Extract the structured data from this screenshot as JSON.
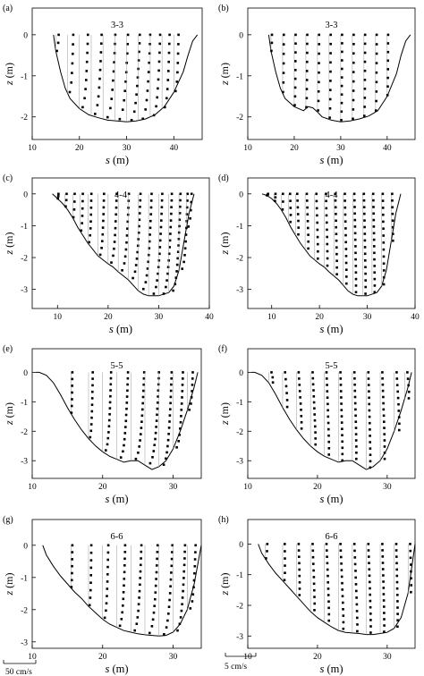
{
  "figure": {
    "panels": [
      {
        "letter": "(a)",
        "section": "3-3",
        "xticks": [
          "10",
          "20",
          "30",
          "40"
        ],
        "yticks": [
          "0",
          "-1",
          "-2"
        ],
        "xlabel_var": "s",
        "xlabel_unit": "(m)",
        "ylabel_var": "z",
        "ylabel_unit": "(m)",
        "xlim": [
          10,
          46
        ],
        "ylim": [
          -2.55,
          0.65
        ]
      },
      {
        "letter": "(b)",
        "section": "3-3",
        "xticks": [
          "10",
          "20",
          "30",
          "40"
        ],
        "yticks": [
          "0",
          "-1",
          "-2"
        ],
        "xlabel_var": "s",
        "xlabel_unit": "(m)",
        "ylabel_var": "z",
        "ylabel_unit": "(m)",
        "xlim": [
          10,
          46
        ],
        "ylim": [
          -2.55,
          0.65
        ]
      },
      {
        "letter": "(c)",
        "section": "4-4",
        "xticks": [
          "10",
          "20",
          "30",
          "40"
        ],
        "yticks": [
          "0",
          "-1",
          "-2",
          "-3"
        ],
        "xlabel_var": "s",
        "xlabel_unit": "(m)",
        "ylabel_var": "z",
        "ylabel_unit": "(m)",
        "xlim": [
          5,
          40
        ],
        "ylim": [
          -3.6,
          0.5
        ]
      },
      {
        "letter": "(d)",
        "section": "4-4",
        "xticks": [
          "10",
          "20",
          "30",
          "40"
        ],
        "yticks": [
          "0",
          "-1",
          "-2",
          "-3"
        ],
        "xlabel_var": "s",
        "xlabel_unit": "(m)",
        "ylabel_var": "z",
        "ylabel_unit": "(m)",
        "xlim": [
          5,
          40
        ],
        "ylim": [
          -3.6,
          0.5
        ]
      },
      {
        "letter": "(e)",
        "section": "5-5",
        "xticks": [
          "10",
          "20",
          "30"
        ],
        "yticks": [
          "0",
          "-1",
          "-2",
          "-3"
        ],
        "xlabel_var": "s",
        "xlabel_unit": "(m)",
        "ylabel_var": "z",
        "ylabel_unit": "(m)",
        "xlim": [
          10,
          34
        ],
        "ylim": [
          -3.6,
          0.8
        ]
      },
      {
        "letter": "(f)",
        "section": "5-5",
        "xticks": [
          "10",
          "20",
          "30"
        ],
        "yticks": [
          "0",
          "-1",
          "-2",
          "-3"
        ],
        "xlabel_var": "s",
        "xlabel_unit": "(m)",
        "ylabel_var": "z",
        "ylabel_unit": "(m)",
        "xlim": [
          10,
          34
        ],
        "ylim": [
          -3.6,
          0.8
        ]
      },
      {
        "letter": "(g)",
        "section": "6-6",
        "xticks": [
          "10",
          "20",
          "30"
        ],
        "yticks": [
          "0",
          "-1",
          "-2",
          "-3"
        ],
        "xlabel_var": "s",
        "xlabel_unit": "(m)",
        "ylabel_var": "z",
        "ylabel_unit": "(m)",
        "xlim": [
          10,
          34
        ],
        "ylim": [
          -3.2,
          0.8
        ]
      },
      {
        "letter": "(h)",
        "section": "6-6",
        "xticks": [
          "10",
          "20",
          "30"
        ],
        "yticks": [
          "0",
          "-1",
          "-2",
          "-3"
        ],
        "xlabel_var": "s",
        "xlabel_unit": "(m)",
        "ylabel_var": "z",
        "ylabel_unit": "(m)",
        "xlim": [
          10,
          34
        ],
        "ylim": [
          -3.4,
          0.8
        ]
      }
    ],
    "scales": [
      {
        "label": "50 cm/s",
        "length_cms": 50,
        "column": "left"
      },
      {
        "label": "5 cm/s",
        "length_cms": 5,
        "column": "right"
      }
    ]
  },
  "chart_data": [
    {
      "type": "scatter",
      "panel": "(a)",
      "title": "3-3",
      "xlabel": "s (m)",
      "ylabel": "z (m)",
      "xlim": [
        10,
        46
      ],
      "ylim": [
        -2.55,
        0.65
      ],
      "bed": {
        "x": [
          14.5,
          15,
          16,
          17,
          18,
          20,
          22,
          24,
          26,
          28,
          30,
          32,
          34,
          36,
          38,
          40,
          42,
          43,
          44,
          45
        ],
        "y": [
          0,
          -0.4,
          -0.9,
          -1.3,
          -1.55,
          -1.8,
          -1.95,
          -2.02,
          -2.08,
          -2.1,
          -2.12,
          -2.1,
          -2.05,
          -1.95,
          -1.75,
          -1.4,
          -0.9,
          -0.5,
          -0.15,
          0
        ]
      },
      "verticals": [
        15,
        17.5,
        20,
        22.5,
        25,
        27.5,
        30,
        32.5,
        35,
        37.5,
        40
      ],
      "velocity": [
        0.6,
        1.2,
        1.8,
        2.2,
        2.6,
        2.8,
        2.8,
        2.5,
        2.1,
        1.6,
        1.0
      ],
      "shear": [
        0,
        0,
        0,
        0,
        0,
        0,
        0,
        0,
        0,
        0,
        0
      ]
    },
    {
      "type": "scatter",
      "panel": "(b)",
      "title": "3-3",
      "xlabel": "s (m)",
      "ylabel": "z (m)",
      "xlim": [
        10,
        46
      ],
      "ylim": [
        -2.55,
        0.65
      ],
      "bed": {
        "x": [
          14.5,
          15,
          16,
          17,
          18,
          20,
          22,
          23,
          24,
          25,
          26,
          28,
          30,
          32,
          34,
          36,
          38,
          40,
          42,
          43,
          44,
          45
        ],
        "y": [
          0,
          -0.4,
          -0.9,
          -1.3,
          -1.55,
          -1.75,
          -1.85,
          -1.75,
          -1.78,
          -1.88,
          -2.0,
          -2.08,
          -2.12,
          -2.1,
          -2.05,
          -1.98,
          -1.85,
          -1.5,
          -0.95,
          -0.5,
          -0.15,
          0
        ]
      },
      "verticals": [
        15,
        17.5,
        20,
        22.5,
        25,
        27.5,
        30,
        32.5,
        35,
        37.5,
        40
      ],
      "velocity": [
        0.2,
        0.25,
        0.3,
        0.3,
        0.35,
        0.35,
        0.3,
        0.3,
        0.25,
        0.25,
        0.2
      ],
      "shear": [
        0,
        0,
        0,
        0,
        0,
        0,
        0,
        0,
        0,
        0,
        0
      ]
    },
    {
      "type": "scatter",
      "panel": "(c)",
      "title": "4-4",
      "xlabel": "s (m)",
      "ylabel": "z (m)",
      "xlim": [
        5,
        40
      ],
      "ylim": [
        -3.6,
        0.5
      ],
      "bed": {
        "x": [
          9,
          10,
          11,
          12,
          13,
          14,
          15,
          16,
          18,
          20,
          21,
          22,
          24,
          26,
          27,
          28,
          30,
          32,
          33,
          34,
          35,
          36,
          37
        ],
        "y": [
          0,
          -0.15,
          -0.3,
          -0.5,
          -0.75,
          -1.05,
          -1.3,
          -1.55,
          -1.95,
          -2.2,
          -2.3,
          -2.45,
          -2.7,
          -3.05,
          -3.15,
          -3.2,
          -3.2,
          -3.1,
          -2.9,
          -2.4,
          -1.5,
          -0.6,
          0
        ]
      },
      "verticals": [
        10,
        11.5,
        13,
        14.5,
        16,
        18,
        20,
        22,
        24,
        26,
        28,
        30,
        32,
        34,
        35.5
      ],
      "velocity": [
        0.2,
        0.3,
        0.4,
        0.5,
        0.7,
        1.2,
        1.7,
        2.1,
        2.4,
        2.6,
        2.7,
        2.6,
        2.3,
        1.7,
        1.0
      ],
      "shear": [
        0,
        0,
        0,
        0,
        0,
        0,
        0,
        0,
        0,
        0,
        0,
        0,
        0,
        0,
        0
      ]
    },
    {
      "type": "scatter",
      "panel": "(d)",
      "title": "4-4",
      "xlabel": "s (m)",
      "ylabel": "z (m)",
      "xlim": [
        5,
        40
      ],
      "ylim": [
        -3.6,
        0.5
      ],
      "bed": {
        "x": [
          8,
          9,
          10,
          11,
          12,
          13,
          14,
          15,
          16,
          18,
          20,
          21,
          22,
          24,
          26,
          27,
          28,
          30,
          32,
          33,
          34,
          35,
          36,
          37
        ],
        "y": [
          0,
          -0.05,
          -0.15,
          -0.3,
          -0.5,
          -0.75,
          -1.05,
          -1.3,
          -1.55,
          -1.95,
          -2.2,
          -2.3,
          -2.45,
          -2.7,
          -3.05,
          -3.15,
          -3.2,
          -3.2,
          -3.1,
          -2.9,
          -2.4,
          -1.5,
          -0.6,
          0
        ]
      },
      "verticals": [
        9,
        10.5,
        12,
        13.5,
        15,
        17,
        19,
        21,
        23,
        25,
        27,
        29,
        31,
        33,
        35
      ],
      "velocity": [
        0.25,
        0.3,
        0.35,
        0.35,
        0.35,
        0.35,
        0.35,
        0.35,
        0.3,
        0.3,
        0.3,
        0.3,
        0.25,
        0.25,
        0.2
      ],
      "shear": [
        -0.05,
        0.05,
        0.1,
        0.2,
        0.3,
        0.35,
        0.35,
        0.35,
        0.35,
        0.35,
        0.35,
        0.35,
        0.3,
        0.25,
        0.2
      ]
    },
    {
      "type": "scatter",
      "panel": "(e)",
      "title": "5-5",
      "xlabel": "s (m)",
      "ylabel": "z (m)",
      "xlim": [
        10,
        34
      ],
      "ylim": [
        -3.6,
        0.8
      ],
      "bed": {
        "x": [
          10.5,
          11,
          12,
          13,
          14,
          15,
          16,
          17,
          18,
          19,
          20,
          21,
          22,
          23,
          24,
          25,
          26,
          27,
          28,
          29,
          30,
          31,
          32,
          33,
          33.5
        ],
        "y": [
          0,
          0,
          -0.1,
          -0.35,
          -0.75,
          -1.2,
          -1.6,
          -1.95,
          -2.25,
          -2.5,
          -2.7,
          -2.85,
          -2.95,
          -3.05,
          -3.0,
          -3.0,
          -3.15,
          -3.3,
          -3.2,
          -3.0,
          -2.6,
          -2.0,
          -1.3,
          -0.5,
          0
        ]
      },
      "verticals": [
        15.5,
        18,
        20,
        22,
        24,
        26,
        28,
        30,
        32
      ],
      "velocity": [
        0.2,
        0.6,
        1.2,
        1.6,
        1.9,
        2.0,
        1.8,
        1.4,
        0.8
      ],
      "shear": [
        0,
        0,
        0,
        0,
        0,
        0,
        0,
        0,
        0
      ]
    },
    {
      "type": "scatter",
      "panel": "(f)",
      "title": "5-5",
      "xlabel": "s (m)",
      "ylabel": "z (m)",
      "xlim": [
        10,
        34
      ],
      "ylim": [
        -3.6,
        0.8
      ],
      "bed": {
        "x": [
          10.5,
          11,
          12,
          13,
          14,
          15,
          16,
          17,
          18,
          19,
          20,
          21,
          22,
          23,
          24,
          25,
          26,
          27,
          28,
          29,
          30,
          31,
          32,
          33,
          33.5
        ],
        "y": [
          0,
          0,
          -0.1,
          -0.35,
          -0.75,
          -1.2,
          -1.6,
          -1.95,
          -2.25,
          -2.5,
          -2.7,
          -2.85,
          -2.95,
          -3.05,
          -3.0,
          -3.0,
          -3.15,
          -3.3,
          -3.2,
          -3.0,
          -2.6,
          -2.0,
          -1.3,
          -0.5,
          0
        ]
      },
      "verticals": [
        13,
        15,
        17,
        19,
        21,
        23,
        25,
        27,
        29,
        31,
        32.5
      ],
      "velocity": [
        0.4,
        0.35,
        0.3,
        0.3,
        0.3,
        0.3,
        0.3,
        0.3,
        0.3,
        0.35,
        0.4
      ],
      "shear": [
        0.3,
        0.35,
        0.4,
        0.4,
        0.35,
        0.3,
        0.3,
        0.3,
        0.35,
        0.4,
        0.3
      ]
    },
    {
      "type": "scatter",
      "panel": "(g)",
      "title": "6-6",
      "xlabel": "s (m)",
      "ylabel": "z (m)",
      "xlim": [
        10,
        34
      ],
      "ylim": [
        -3.2,
        0.8
      ],
      "bed": {
        "x": [
          11.5,
          12,
          13,
          14,
          15,
          16,
          17,
          18,
          19,
          20,
          21,
          22,
          23,
          24,
          25,
          26,
          27,
          28,
          29,
          30,
          31,
          32,
          33,
          34
        ],
        "y": [
          0,
          -0.3,
          -0.65,
          -0.95,
          -1.2,
          -1.45,
          -1.65,
          -1.9,
          -2.1,
          -2.3,
          -2.45,
          -2.55,
          -2.65,
          -2.7,
          -2.75,
          -2.78,
          -2.8,
          -2.82,
          -2.8,
          -2.7,
          -2.45,
          -2.0,
          -1.2,
          0
        ]
      },
      "verticals": [
        15.5,
        18,
        20,
        22,
        24,
        26,
        28,
        30,
        32
      ],
      "velocity": [
        0.2,
        0.4,
        0.8,
        1.2,
        1.5,
        1.8,
        1.9,
        1.7,
        1.2
      ],
      "shear": [
        0,
        0,
        0,
        0,
        0,
        0,
        0,
        0,
        0
      ]
    },
    {
      "type": "scatter",
      "panel": "(h)",
      "title": "6-6",
      "xlabel": "s (m)",
      "ylabel": "z (m)",
      "xlim": [
        10,
        34
      ],
      "ylim": [
        -3.4,
        0.8
      ],
      "bed": {
        "x": [
          11.5,
          12,
          13,
          14,
          15,
          16,
          17,
          18,
          19,
          20,
          21,
          22,
          23,
          24,
          25,
          26,
          27,
          28,
          29,
          30,
          31,
          32,
          33,
          34
        ],
        "y": [
          0,
          -0.3,
          -0.65,
          -0.95,
          -1.2,
          -1.45,
          -1.7,
          -1.95,
          -2.2,
          -2.4,
          -2.55,
          -2.7,
          -2.82,
          -2.88,
          -2.9,
          -2.92,
          -2.95,
          -2.95,
          -2.92,
          -2.88,
          -2.75,
          -2.4,
          -1.6,
          0
        ]
      },
      "verticals": [
        12.5,
        15,
        17,
        19,
        21,
        23,
        25,
        27,
        29,
        31,
        33
      ],
      "velocity": [
        0.3,
        0.3,
        0.3,
        0.3,
        0.3,
        0.3,
        0.3,
        0.3,
        0.3,
        0.3,
        0.3
      ],
      "shear": [
        0.0,
        0.1,
        0.2,
        0.3,
        0.35,
        0.4,
        0.4,
        0.35,
        0.3,
        0.25,
        0.2
      ]
    }
  ]
}
